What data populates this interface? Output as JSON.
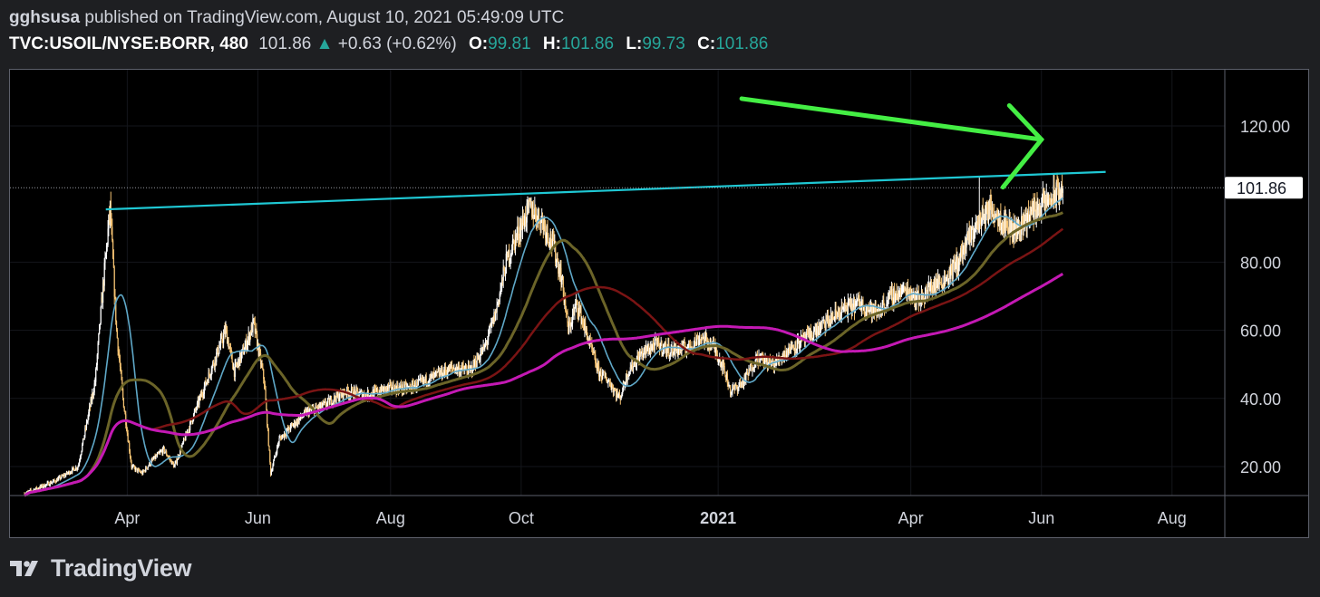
{
  "header": {
    "author": "gghsusa",
    "published": "published on TradingView.com, August 10, 2021 05:49:09 UTC",
    "symbol": "TVC:USOIL/NYSE:BORR, 480",
    "last": "101.86",
    "change_arrow": "▲",
    "change": "+0.63 (+0.62%)",
    "open_label": "O:",
    "open": "99.81",
    "high_label": "H:",
    "high": "101.86",
    "low_label": "L:",
    "low": "99.73",
    "close_label": "C:",
    "close": "101.86"
  },
  "footer": {
    "brand": "TradingView",
    "logo_icon": "tradingview-logo-icon"
  },
  "colors": {
    "background": "#000000",
    "candle_up": "#ffffff",
    "candle_down": "#f5c373",
    "trendline": "#1fc8d4",
    "arrow": "#44ee44",
    "ma_fast": "#5fa8c8",
    "ma_medium": "#6b6428",
    "ma_slow": "#7a1414",
    "ma_long": "#c419b4",
    "price_label_bg": "#ffffff",
    "price_label_text": "#131722",
    "axis_text": "#d1d4dc"
  },
  "chart_data": {
    "type": "candlestick",
    "ylim": [
      12,
      137
    ],
    "xlim": [
      0,
      520
    ],
    "yticks": [
      {
        "value": 20,
        "label": "20.00"
      },
      {
        "value": 40,
        "label": "40.00"
      },
      {
        "value": 60,
        "label": "60.00"
      },
      {
        "value": 80,
        "label": "80.00"
      },
      {
        "value": 120,
        "label": "120.00"
      }
    ],
    "xticks": [
      {
        "day": 48,
        "label": "Apr",
        "bold": false
      },
      {
        "day": 109,
        "label": "Jun",
        "bold": false
      },
      {
        "day": 171,
        "label": "Aug",
        "bold": false
      },
      {
        "day": 232,
        "label": "Oct",
        "bold": false
      },
      {
        "day": 324,
        "label": "2021",
        "bold": true
      },
      {
        "day": 414,
        "label": "Apr",
        "bold": false
      },
      {
        "day": 475,
        "label": "Jun",
        "bold": false
      },
      {
        "day": 536,
        "label": "Aug",
        "bold": false
      }
    ],
    "current_price": {
      "value": 101.86,
      "label": "101.86"
    },
    "price_path": [
      [
        0,
        12
      ],
      [
        15,
        16
      ],
      [
        25,
        20
      ],
      [
        33,
        45
      ],
      [
        37,
        75
      ],
      [
        40,
        96
      ],
      [
        43,
        60
      ],
      [
        46,
        40
      ],
      [
        50,
        20
      ],
      [
        55,
        18
      ],
      [
        60,
        22
      ],
      [
        65,
        25
      ],
      [
        70,
        20
      ],
      [
        76,
        30
      ],
      [
        82,
        40
      ],
      [
        88,
        50
      ],
      [
        94,
        60
      ],
      [
        98,
        48
      ],
      [
        103,
        55
      ],
      [
        107,
        62
      ],
      [
        112,
        45
      ],
      [
        115,
        18
      ],
      [
        119,
        28
      ],
      [
        125,
        32
      ],
      [
        132,
        36
      ],
      [
        140,
        38
      ],
      [
        150,
        42
      ],
      [
        160,
        41
      ],
      [
        170,
        43
      ],
      [
        180,
        43
      ],
      [
        190,
        46
      ],
      [
        200,
        49
      ],
      [
        208,
        48
      ],
      [
        215,
        55
      ],
      [
        220,
        65
      ],
      [
        225,
        80
      ],
      [
        230,
        88
      ],
      [
        236,
        96
      ],
      [
        242,
        92
      ],
      [
        247,
        85
      ],
      [
        251,
        75
      ],
      [
        254,
        60
      ],
      [
        258,
        68
      ],
      [
        263,
        58
      ],
      [
        268,
        48
      ],
      [
        273,
        45
      ],
      [
        278,
        40
      ],
      [
        282,
        48
      ],
      [
        288,
        53
      ],
      [
        295,
        56
      ],
      [
        302,
        54
      ],
      [
        310,
        55
      ],
      [
        316,
        58
      ],
      [
        322,
        55
      ],
      [
        326,
        50
      ],
      [
        330,
        42
      ],
      [
        336,
        45
      ],
      [
        342,
        52
      ],
      [
        350,
        50
      ],
      [
        358,
        55
      ],
      [
        366,
        58
      ],
      [
        374,
        62
      ],
      [
        382,
        66
      ],
      [
        390,
        68
      ],
      [
        398,
        65
      ],
      [
        405,
        70
      ],
      [
        412,
        72
      ],
      [
        418,
        69
      ],
      [
        424,
        73
      ],
      [
        430,
        75
      ],
      [
        436,
        80
      ],
      [
        442,
        88
      ],
      [
        448,
        94
      ],
      [
        452,
        96
      ],
      [
        457,
        92
      ],
      [
        463,
        89
      ],
      [
        468,
        93
      ],
      [
        473,
        96
      ],
      [
        478,
        98
      ],
      [
        482,
        100
      ],
      [
        485,
        101.86
      ]
    ],
    "candles_per_day": 3,
    "wick_spikes": [
      {
        "day": 40,
        "high": 96
      },
      {
        "day": 236,
        "high": 99
      },
      {
        "day": 446,
        "high": 105
      },
      {
        "day": 484,
        "high": 102
      }
    ],
    "moving_averages": [
      {
        "key": "ma_fast",
        "period": 12,
        "width": 1.6
      },
      {
        "key": "ma_medium",
        "period": 30,
        "width": 3
      },
      {
        "key": "ma_slow",
        "period": 60,
        "width": 2.5
      },
      {
        "key": "ma_long",
        "period": 130,
        "width": 3
      }
    ],
    "trendline": {
      "start": {
        "day": 38,
        "price": 95.5
      },
      "end": {
        "day": 505,
        "price": 106.5
      }
    },
    "annotation_arrow": {
      "start": {
        "day": 335,
        "price": 128
      },
      "end": {
        "day": 475,
        "price": 116
      },
      "head_a": {
        "day": 460,
        "price": 126
      },
      "head_b": {
        "day": 457,
        "price": 102
      }
    }
  }
}
